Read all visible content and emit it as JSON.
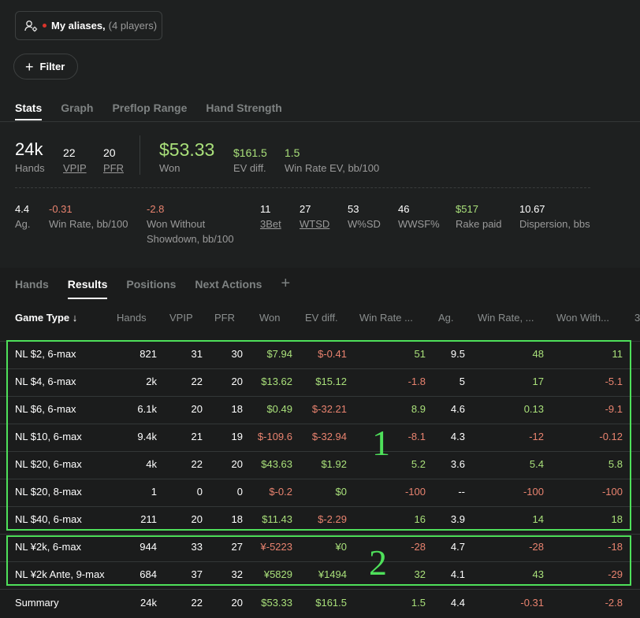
{
  "aliases": {
    "label": "My aliases,",
    "count": "(4 players)",
    "icon": "user-settings-icon",
    "dot_color": "#d9342b"
  },
  "filter": {
    "label": "Filter",
    "icon": "plus-icon"
  },
  "top_tabs": [
    "Stats",
    "Graph",
    "Preflop Range",
    "Hand Strength"
  ],
  "stats": {
    "hands": {
      "value": "24k",
      "label": "Hands"
    },
    "vpip": {
      "value": "22",
      "label": "VPIP"
    },
    "pfr": {
      "value": "20",
      "label": "PFR"
    },
    "won": {
      "value": "$53.33",
      "label": "Won"
    },
    "ev_diff": {
      "value": "$161.5",
      "label": "EV diff."
    },
    "win_rate_ev": {
      "value": "1.5",
      "label": "Win Rate EV, bb/100"
    }
  },
  "stats2": {
    "ag": {
      "value": "4.4",
      "label": "Ag."
    },
    "win_rate": {
      "value": "-0.31",
      "label": "Win Rate, bb/100"
    },
    "won_without_sd": {
      "value": "-2.8",
      "label1": "Won Without",
      "label2": "Showdown, bb/100"
    },
    "three_bet": {
      "value": "11",
      "label": "3Bet"
    },
    "wtsd": {
      "value": "27",
      "label": "WTSD"
    },
    "wsd": {
      "value": "53",
      "label": "W%SD"
    },
    "wwsf": {
      "value": "46",
      "label": "WWSF%"
    },
    "rake": {
      "value": "$517",
      "label": "Rake paid"
    },
    "dispersion": {
      "value": "10.67",
      "label": "Dispersion, bbs"
    }
  },
  "bottom_tabs": [
    "Hands",
    "Results",
    "Positions",
    "Next Actions"
  ],
  "table": {
    "headers": [
      "Game Type ↓",
      "Hands",
      "VPIP",
      "PFR",
      "Won",
      "EV diff.",
      "Win Rate ...",
      "Ag.",
      "Win Rate, ...",
      "Won With...",
      "3"
    ],
    "rows": [
      [
        "NL $2, 6-max",
        "821",
        "31",
        "30",
        "$7.94",
        "$-0.41",
        "51",
        "9.5",
        "48",
        "11"
      ],
      [
        "NL $4, 6-max",
        "2k",
        "22",
        "20",
        "$13.62",
        "$15.12",
        "-1.8",
        "5",
        "17",
        "-5.1"
      ],
      [
        "NL $6, 6-max",
        "6.1k",
        "20",
        "18",
        "$0.49",
        "$-32.21",
        "8.9",
        "4.6",
        "0.13",
        "-9.1"
      ],
      [
        "NL $10, 6-max",
        "9.4k",
        "21",
        "19",
        "$-109.6",
        "$-32.94",
        "-8.1",
        "4.3",
        "-12",
        "-0.12"
      ],
      [
        "NL $20, 6-max",
        "4k",
        "22",
        "20",
        "$43.63",
        "$1.92",
        "5.2",
        "3.6",
        "5.4",
        "5.8"
      ],
      [
        "NL $20, 8-max",
        "1",
        "0",
        "0",
        "$-0.2",
        "$0",
        "-100",
        "--",
        "-100",
        "-100"
      ],
      [
        "NL $40, 6-max",
        "211",
        "20",
        "18",
        "$11.43",
        "$-2.29",
        "16",
        "3.9",
        "14",
        "18"
      ],
      [
        "NL ¥2k, 6-max",
        "944",
        "33",
        "27",
        "¥-5223",
        "¥0",
        "-28",
        "4.7",
        "-28",
        "-18"
      ],
      [
        "NL ¥2k Ante, 9-max",
        "684",
        "37",
        "32",
        "¥5829",
        "¥1494",
        "32",
        "4.1",
        "43",
        "-29"
      ]
    ],
    "summary": [
      "Summary",
      "24k",
      "22",
      "20",
      "$53.33",
      "$161.5",
      "1.5",
      "4.4",
      "-0.31",
      "-2.8"
    ]
  },
  "annotations": {
    "box1": "1",
    "box2": "2",
    "color": "#4ee05a"
  },
  "colors": {
    "positive": "#a9e07a",
    "negative": "#e9836f",
    "background": "#1e2020"
  }
}
